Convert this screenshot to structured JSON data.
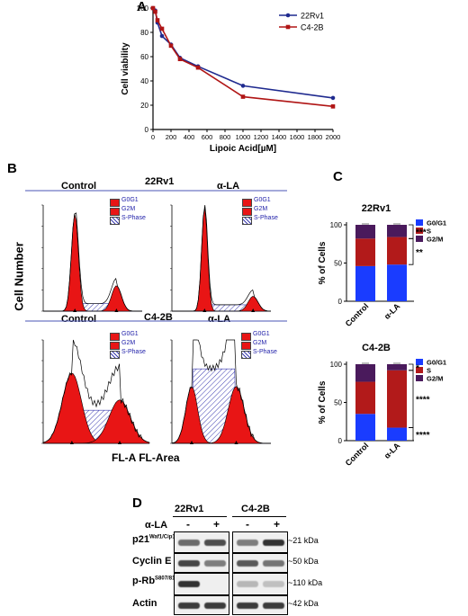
{
  "panels": {
    "A": {
      "letter": "A",
      "chart_data": {
        "type": "line",
        "xlabel": "Lipoic Acid[µM]",
        "ylabel": "Cell viability",
        "xlim": [
          0,
          2000
        ],
        "ylim": [
          0,
          100
        ],
        "xticks": [
          "0",
          "200",
          "400",
          "600",
          "800",
          "1000",
          "1200",
          "1400",
          "1600",
          "1800",
          "2000"
        ],
        "yticks": [
          "0",
          "20",
          "40",
          "60",
          "80",
          "100"
        ],
        "legend": "top-right",
        "series": [
          {
            "name": "22Rv1",
            "color": "#1f2a8f",
            "x": [
              0,
              25,
              50,
              100,
              200,
              300,
              500,
              1000,
              2000
            ],
            "y": [
              100,
              98,
              88,
              77,
              70,
              59,
              52,
              36,
              26
            ]
          },
          {
            "name": "C4-2B",
            "color": "#b01515",
            "x": [
              0,
              25,
              50,
              100,
              200,
              300,
              500,
              1000,
              2000
            ],
            "y": [
              100,
              97,
              90,
              83,
              69,
              58,
              51,
              27,
              19
            ]
          }
        ]
      }
    },
    "B": {
      "letter": "B",
      "y_label": "Cell Number",
      "x_label": "FL-A FL-Area",
      "row_labels": [
        "22Rv1",
        "C4-2B"
      ],
      "col_labels": [
        "Control",
        "α-LA"
      ],
      "legend": [
        "G0G1",
        "G2M",
        "S-Phase"
      ],
      "colors": {
        "peak": "#e81515",
        "hatch": "#3b3bb0",
        "divider": "#4a55b5"
      }
    },
    "C": {
      "letter": "C",
      "chart_data": [
        {
          "type": "bar",
          "title": "22Rv1",
          "ylabel": "% of Cells",
          "categories": [
            "Control",
            "α-LA"
          ],
          "ylim": [
            0,
            100
          ],
          "yticks": [
            "0",
            "50",
            "100"
          ],
          "stacked": true,
          "series": [
            {
              "name": "G0/G1",
              "color": "#1a3cff",
              "values": [
                46,
                48
              ]
            },
            {
              "name": "S",
              "color": "#b21a1a",
              "values": [
                36,
                36
              ]
            },
            {
              "name": "G2/M",
              "color": "#4a1a5c",
              "values": [
                18,
                16
              ]
            }
          ],
          "annotations": [
            "***",
            "**"
          ]
        },
        {
          "type": "bar",
          "title": "C4-2B",
          "ylabel": "% of Cells",
          "categories": [
            "Control",
            "α-LA"
          ],
          "ylim": [
            0,
            100
          ],
          "yticks": [
            "0",
            "50",
            "100"
          ],
          "stacked": true,
          "series": [
            {
              "name": "G0/G1",
              "color": "#1a3cff",
              "values": [
                35,
                17
              ]
            },
            {
              "name": "S",
              "color": "#b21a1a",
              "values": [
                42,
                75
              ]
            },
            {
              "name": "G2/M",
              "color": "#4a1a5c",
              "values": [
                23,
                8
              ]
            }
          ],
          "annotations": [
            "*",
            "****",
            "****"
          ]
        }
      ]
    },
    "D": {
      "letter": "D",
      "cell_lines": [
        "22Rv1",
        "C4-2B"
      ],
      "treatment_label": "α-LA",
      "treatment_marks": [
        "-",
        "+",
        "-",
        "+"
      ],
      "rows": [
        {
          "base": "p21",
          "sup": "Waf1/Cip1",
          "kda": "~21 kDa"
        },
        {
          "base": "Cyclin E",
          "sup": "",
          "kda": "~50 kDa"
        },
        {
          "base": "p-Rb",
          "sup": "S807/811",
          "kda": "~110 kDa"
        },
        {
          "base": "Actin",
          "sup": "",
          "kda": "~42 kDa"
        }
      ]
    }
  }
}
